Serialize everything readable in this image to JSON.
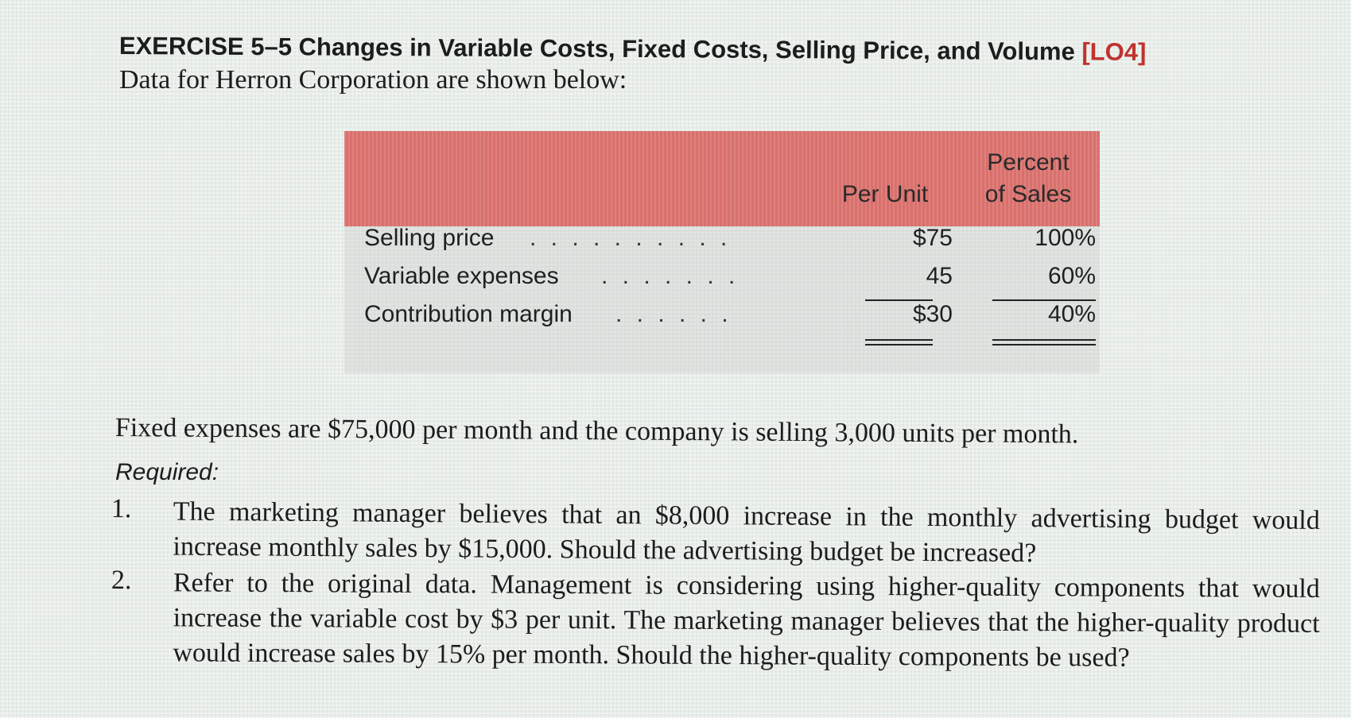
{
  "exercise": {
    "title": "EXERCISE 5–5 Changes in Variable Costs, Fixed Costs, Selling Price, and Volume",
    "learning_objective": "[LO4]",
    "intro": "Data for Herron Corporation are shown below:"
  },
  "table": {
    "header_unit": "Per Unit",
    "header_pct_line1": "Percent",
    "header_pct_line2": "of Sales",
    "rows": [
      {
        "label": "Selling price",
        "dots": ". . . . . . . . . . . . . . . . . . . .",
        "per_unit": "$75",
        "percent": "100%"
      },
      {
        "label": "Variable expenses",
        "dots": ". . . . . . . . . . . . . . . .",
        "per_unit": "45",
        "percent": "60%"
      },
      {
        "label": "Contribution margin",
        "dots": ". . . . . . . . . . . . . . . .",
        "per_unit": "$30",
        "percent": "40%"
      }
    ]
  },
  "fixed_text": "Fixed expenses are $75,000 per month and the company is selling 3,000 units per month.",
  "required_label": "Required:",
  "questions": [
    {
      "num": "1.",
      "text": "The marketing manager believes that an $8,000 increase in the monthly advertising budget would increase monthly sales by $15,000. Should the advertising budget be increased?"
    },
    {
      "num": "2.",
      "text": "Refer to the original data. Management is considering using higher-quality components that would increase the variable cost by $3 per unit. The marketing manager believes that the higher-quality product would increase sales by 15% per month. Should the higher-quality components be used?"
    }
  ]
}
